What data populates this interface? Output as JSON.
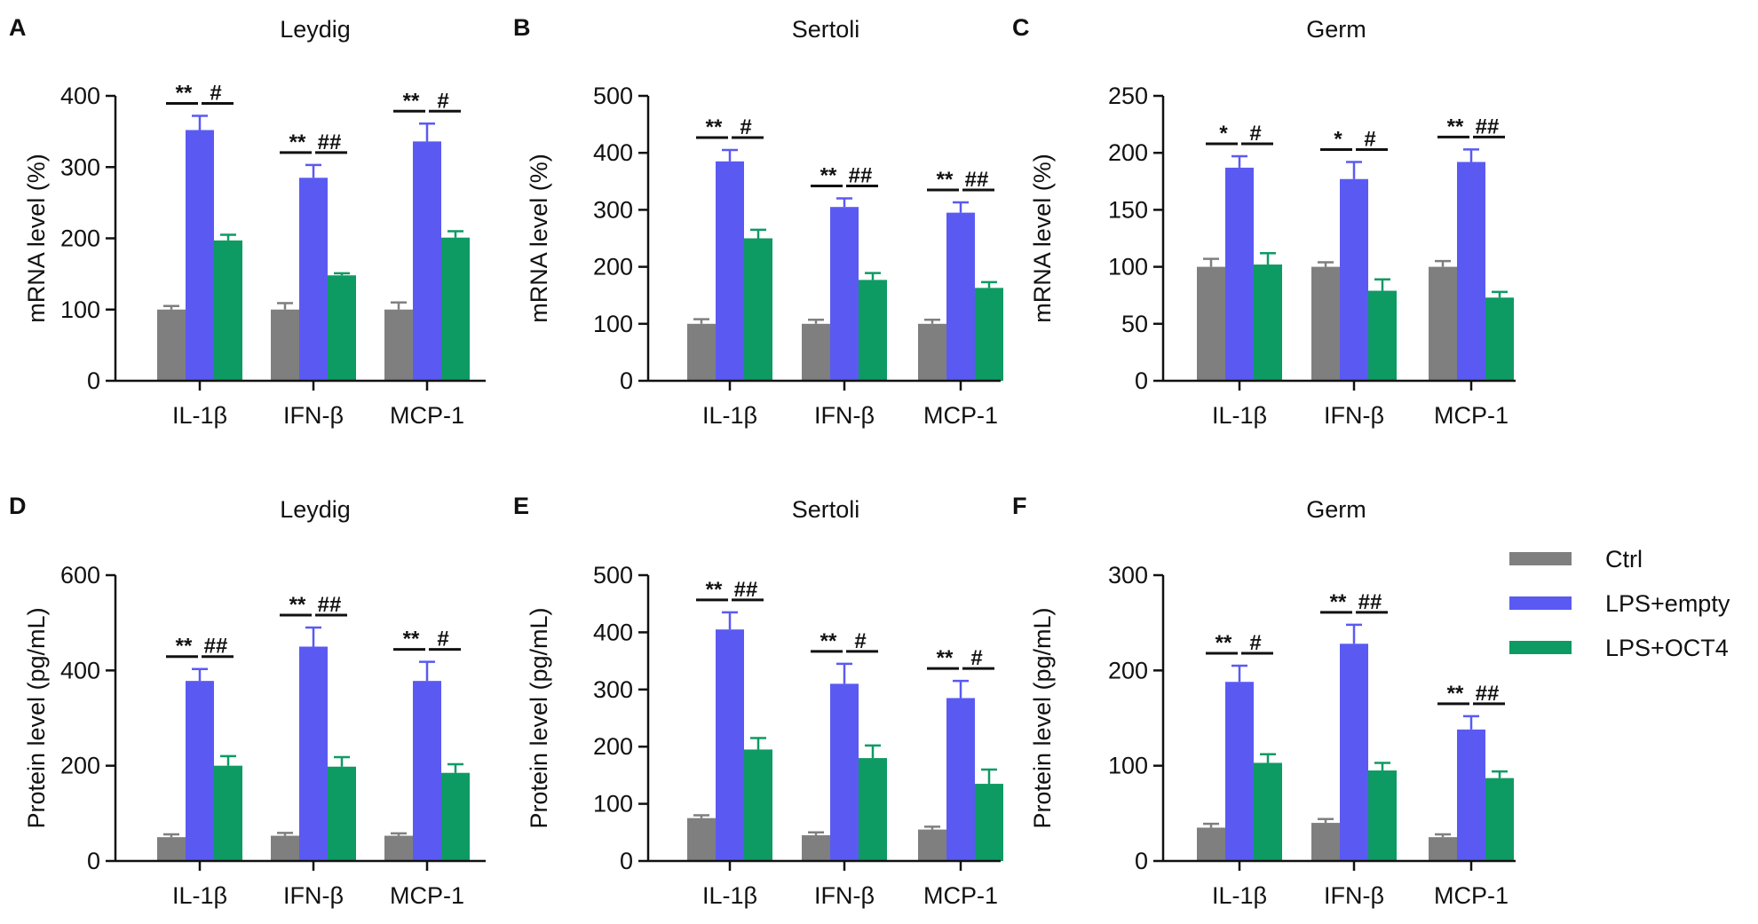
{
  "legend": {
    "items": [
      {
        "label": "Ctrl",
        "color": "#7f7f7f"
      },
      {
        "label": "LPS+empty",
        "color": "#5a5af2"
      },
      {
        "label": "LPS+OCT4",
        "color": "#0e9a63"
      }
    ]
  },
  "chart_data": [
    {
      "type": "bar",
      "letter": "A",
      "title": "Leydig",
      "ylabel": "mRNA level (%)",
      "ylim": [
        0,
        400
      ],
      "yticks": [
        "0",
        "100",
        "200",
        "300",
        "400"
      ],
      "categories": [
        "IL-1β",
        "IFN-β",
        "MCP-1"
      ],
      "series": [
        {
          "name": "Ctrl",
          "values": [
            100,
            100,
            100
          ],
          "errors": [
            5,
            9,
            10
          ]
        },
        {
          "name": "LPS+empty",
          "values": [
            352,
            285,
            336
          ],
          "errors": [
            20,
            18,
            25
          ]
        },
        {
          "name": "LPS+OCT4",
          "values": [
            197,
            148,
            201
          ],
          "errors": [
            8,
            3,
            9
          ]
        }
      ],
      "significance": [
        [
          "**",
          "#"
        ],
        [
          "**",
          "##"
        ],
        [
          "**",
          "#"
        ]
      ]
    },
    {
      "type": "bar",
      "letter": "B",
      "title": "Sertoli",
      "ylabel": "mRNA level (%)",
      "ylim": [
        0,
        500
      ],
      "yticks": [
        "0",
        "100",
        "200",
        "300",
        "400",
        "500"
      ],
      "categories": [
        "IL-1β",
        "IFN-β",
        "MCP-1"
      ],
      "series": [
        {
          "name": "Ctrl",
          "values": [
            100,
            100,
            100
          ],
          "errors": [
            8,
            7,
            7
          ]
        },
        {
          "name": "LPS+empty",
          "values": [
            385,
            305,
            295
          ],
          "errors": [
            20,
            15,
            18
          ]
        },
        {
          "name": "LPS+OCT4",
          "values": [
            250,
            177,
            163
          ],
          "errors": [
            15,
            12,
            10
          ]
        }
      ],
      "significance": [
        [
          "**",
          "#"
        ],
        [
          "**",
          "##"
        ],
        [
          "**",
          "##"
        ]
      ]
    },
    {
      "type": "bar",
      "letter": "C",
      "title": "Germ",
      "ylabel": "mRNA level (%)",
      "ylim": [
        0,
        250
      ],
      "yticks": [
        "0",
        "50",
        "100",
        "150",
        "200",
        "250"
      ],
      "categories": [
        "IL-1β",
        "IFN-β",
        "MCP-1"
      ],
      "series": [
        {
          "name": "Ctrl",
          "values": [
            100,
            100,
            100
          ],
          "errors": [
            7,
            4,
            5
          ]
        },
        {
          "name": "LPS+empty",
          "values": [
            187,
            177,
            192
          ],
          "errors": [
            10,
            15,
            11
          ]
        },
        {
          "name": "LPS+OCT4",
          "values": [
            102,
            79,
            73
          ],
          "errors": [
            10,
            10,
            5
          ]
        }
      ],
      "significance": [
        [
          "*",
          "#"
        ],
        [
          "*",
          "#"
        ],
        [
          "**",
          "##"
        ]
      ]
    },
    {
      "type": "bar",
      "letter": "D",
      "title": "Leydig",
      "ylabel": "Protein level (pg/mL)",
      "ylim": [
        0,
        600
      ],
      "yticks": [
        "0",
        "200",
        "400",
        "600"
      ],
      "categories": [
        "IL-1β",
        "IFN-β",
        "MCP-1"
      ],
      "series": [
        {
          "name": "Ctrl",
          "values": [
            50,
            53,
            53
          ],
          "errors": [
            6,
            6,
            5
          ]
        },
        {
          "name": "LPS+empty",
          "values": [
            378,
            450,
            378
          ],
          "errors": [
            25,
            40,
            40
          ]
        },
        {
          "name": "LPS+OCT4",
          "values": [
            200,
            198,
            185
          ],
          "errors": [
            20,
            20,
            18
          ]
        }
      ],
      "significance": [
        [
          "**",
          "##"
        ],
        [
          "**",
          "##"
        ],
        [
          "**",
          "#"
        ]
      ]
    },
    {
      "type": "bar",
      "letter": "E",
      "title": "Sertoli",
      "ylabel": "Protein level (pg/mL)",
      "ylim": [
        0,
        500
      ],
      "yticks": [
        "0",
        "100",
        "200",
        "300",
        "400",
        "500"
      ],
      "categories": [
        "IL-1β",
        "IFN-β",
        "MCP-1"
      ],
      "series": [
        {
          "name": "Ctrl",
          "values": [
            75,
            45,
            55
          ],
          "errors": [
            5,
            5,
            5
          ]
        },
        {
          "name": "LPS+empty",
          "values": [
            405,
            310,
            285
          ],
          "errors": [
            30,
            35,
            30
          ]
        },
        {
          "name": "LPS+OCT4",
          "values": [
            195,
            180,
            135
          ],
          "errors": [
            20,
            22,
            25
          ]
        }
      ],
      "significance": [
        [
          "**",
          "##"
        ],
        [
          "**",
          "#"
        ],
        [
          "**",
          "#"
        ]
      ]
    },
    {
      "type": "bar",
      "letter": "F",
      "title": "Germ",
      "ylabel": "Protein level (pg/mL)",
      "ylim": [
        0,
        300
      ],
      "yticks": [
        "0",
        "100",
        "200",
        "300"
      ],
      "categories": [
        "IL-1β",
        "IFN-β",
        "MCP-1"
      ],
      "series": [
        {
          "name": "Ctrl",
          "values": [
            35,
            40,
            25
          ],
          "errors": [
            4,
            4,
            3
          ]
        },
        {
          "name": "LPS+empty",
          "values": [
            188,
            228,
            138
          ],
          "errors": [
            17,
            20,
            14
          ]
        },
        {
          "name": "LPS+OCT4",
          "values": [
            103,
            95,
            87
          ],
          "errors": [
            9,
            8,
            7
          ]
        }
      ],
      "significance": [
        [
          "**",
          "#"
        ],
        [
          "**",
          "##"
        ],
        [
          "**",
          "##"
        ]
      ]
    }
  ]
}
